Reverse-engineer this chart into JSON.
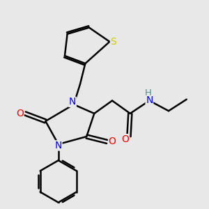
{
  "background_color": "#e8e8e8",
  "atom_colors": {
    "N": "#0000ff",
    "O": "#ff0000",
    "S": "#cccc00",
    "C": "#000000",
    "H": "#4a9090"
  },
  "bond_color": "#000000",
  "bond_width": 1.8,
  "figsize": [
    3.0,
    3.0
  ],
  "dpi": 100
}
